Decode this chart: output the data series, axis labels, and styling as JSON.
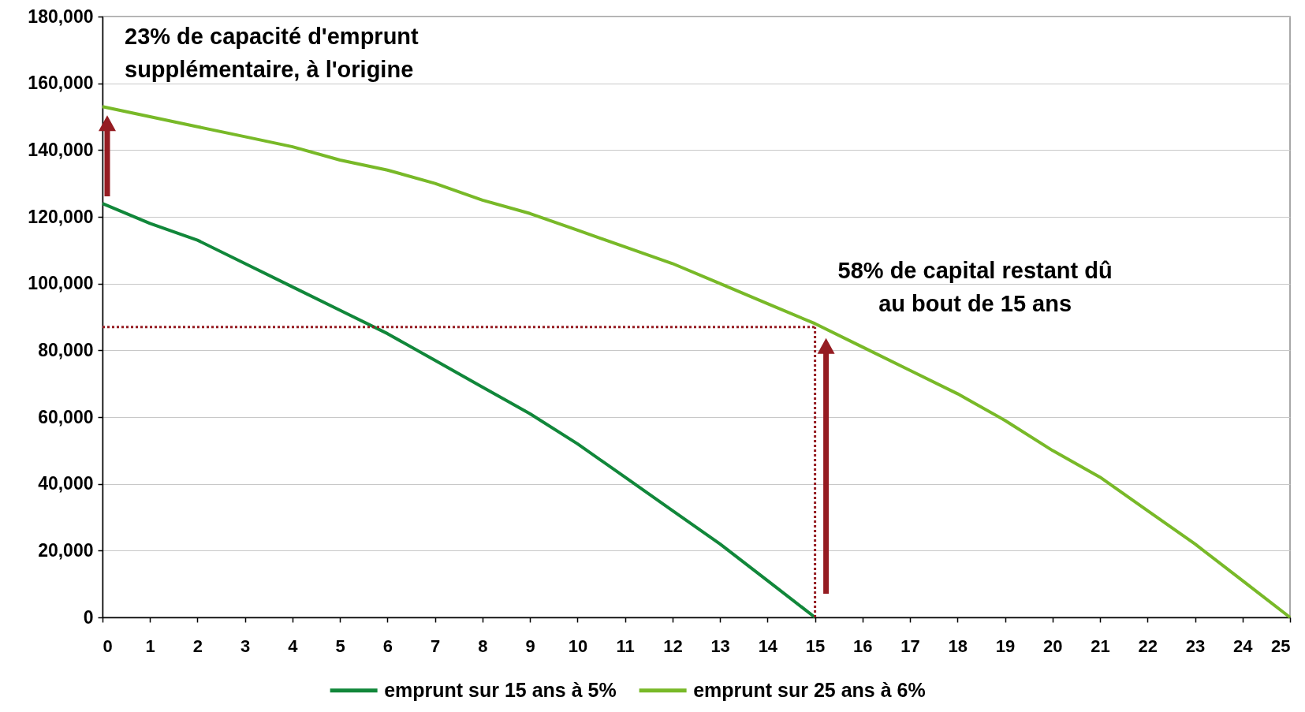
{
  "chart_data": {
    "type": "line",
    "x": [
      0,
      1,
      2,
      3,
      4,
      5,
      6,
      7,
      8,
      9,
      10,
      11,
      12,
      13,
      14,
      15,
      16,
      17,
      18,
      19,
      20,
      21,
      22,
      23,
      24,
      25
    ],
    "series": [
      {
        "name": "emprunt sur 15 ans à 5%",
        "color": "#11873a",
        "x": [
          0,
          1,
          2,
          3,
          4,
          5,
          6,
          7,
          8,
          9,
          10,
          11,
          12,
          13,
          14,
          15
        ],
        "values": [
          124000,
          118000,
          113000,
          106000,
          99000,
          92000,
          85000,
          77000,
          69000,
          61000,
          52000,
          42000,
          32000,
          22000,
          11000,
          0
        ]
      },
      {
        "name": "emprunt sur 25 ans à 6%",
        "color": "#78b928",
        "values": [
          153000,
          150000,
          147000,
          144000,
          141000,
          137000,
          134000,
          130000,
          125000,
          121000,
          116000,
          111000,
          106000,
          100000,
          94000,
          88000,
          81000,
          74000,
          67000,
          59000,
          50000,
          42000,
          32000,
          22000,
          11000,
          0
        ]
      }
    ],
    "xlim": [
      0,
      25
    ],
    "xticks": [
      0,
      1,
      2,
      3,
      4,
      5,
      6,
      7,
      8,
      9,
      10,
      11,
      12,
      13,
      14,
      15,
      16,
      17,
      18,
      19,
      20,
      21,
      22,
      23,
      24,
      25
    ],
    "ylim": [
      0,
      180000
    ],
    "yticks": [
      0,
      {
        "value": 20000,
        "label": "20,000"
      },
      {
        "value": 40000,
        "label": "40,000"
      },
      {
        "value": 60000,
        "label": "60,000"
      },
      {
        "value": 80000,
        "label": "80,000"
      },
      {
        "value": 100000,
        "label": "100,000"
      },
      {
        "value": 120000,
        "label": "120,000"
      },
      {
        "value": 140000,
        "label": "140,000"
      },
      {
        "value": 160000,
        "label": "160,000"
      },
      {
        "value": 180000,
        "label": "180,000"
      }
    ],
    "ref_lines": [
      {
        "axis": "y",
        "value": 87000,
        "color": "#951c22",
        "line_style": "dotted"
      },
      {
        "axis": "x",
        "value": 15,
        "color": "#951c22",
        "line_style": "dotted"
      }
    ],
    "annotations": [
      {
        "text": "23% de capacité d'emprunt\nsupplémentaire, à l'origine",
        "x": 0,
        "y": 153000
      },
      {
        "text": "58% de capital restant dû\nau bout de 15 ans",
        "x": 15,
        "y": 87000
      }
    ],
    "grid": "y",
    "legend": "bottom",
    "line_style": "solid"
  }
}
